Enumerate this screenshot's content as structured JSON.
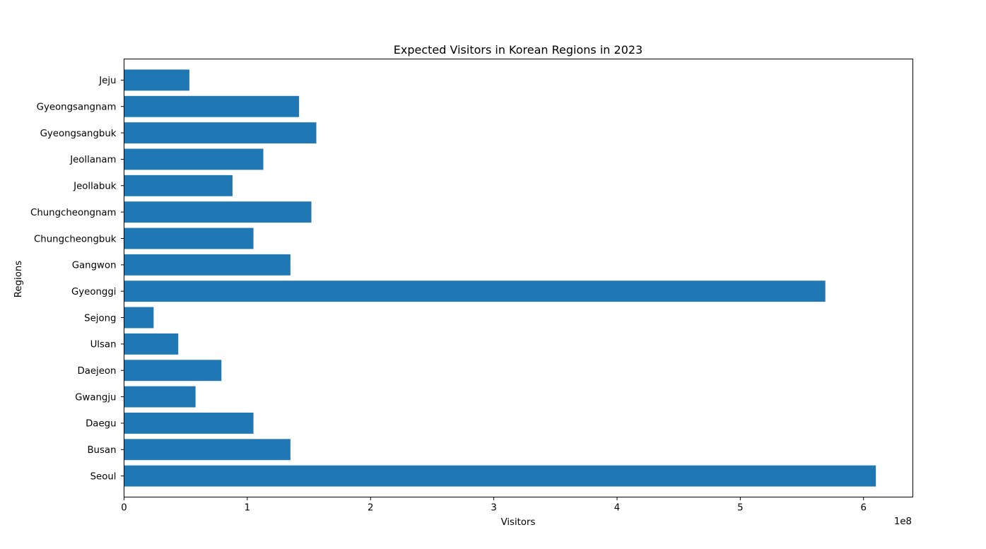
{
  "chart_data": {
    "type": "bar",
    "orientation": "horizontal",
    "title": "Expected Visitors in Korean Regions in 2023",
    "xlabel": "Visitors",
    "ylabel": "Regions",
    "x_offset_text": "1e8",
    "xlim": [
      0,
      640000000
    ],
    "x_ticks": [
      0,
      100000000,
      200000000,
      300000000,
      400000000,
      500000000,
      600000000
    ],
    "x_tick_labels": [
      "0",
      "1",
      "2",
      "3",
      "4",
      "5",
      "6"
    ],
    "grid": false,
    "bar_color": "#1f77b4",
    "categories": [
      "Seoul",
      "Busan",
      "Daegu",
      "Gwangju",
      "Daejeon",
      "Ulsan",
      "Sejong",
      "Gyeonggi",
      "Gangwon",
      "Chungcheongbuk",
      "Chungcheongnam",
      "Jeollabuk",
      "Jeollanam",
      "Gyeongsangbuk",
      "Gyeongsangnam",
      "Jeju"
    ],
    "values": [
      610000000,
      135000000,
      105000000,
      58000000,
      79000000,
      44000000,
      24000000,
      569000000,
      135000000,
      105000000,
      152000000,
      88000000,
      113000000,
      156000000,
      142000000,
      53000000
    ]
  }
}
